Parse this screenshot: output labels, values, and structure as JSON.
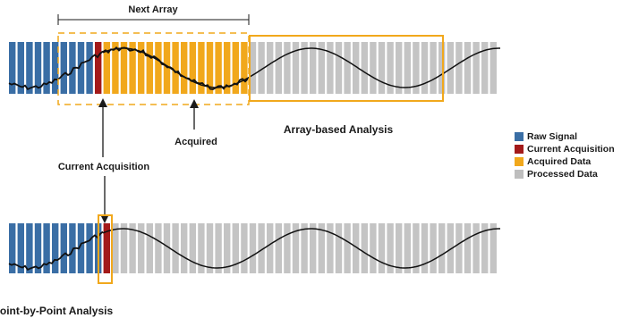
{
  "labels": {
    "next_array": "Next Array",
    "array_based": "Array-based Analysis",
    "acquired": "Acquired",
    "current_acquisition": "Current Acquisition",
    "point_by_point": "Point-by-Point Analysis"
  },
  "legend": [
    {
      "label": "Raw Signal",
      "color": "#3a6ea5"
    },
    {
      "label": "Current Acquisition",
      "color": "#a31a1a"
    },
    {
      "label": "Acquired Data",
      "color": "#f1a81c"
    },
    {
      "label": "Processed Data",
      "color": "#bebebe"
    }
  ],
  "colors": {
    "raw": "#3a6ea5",
    "current": "#a31a1a",
    "acquired": "#f1a81c",
    "processed": "#c4c4c4",
    "highlight": "#f1a81c",
    "signal": "#111111"
  }
}
